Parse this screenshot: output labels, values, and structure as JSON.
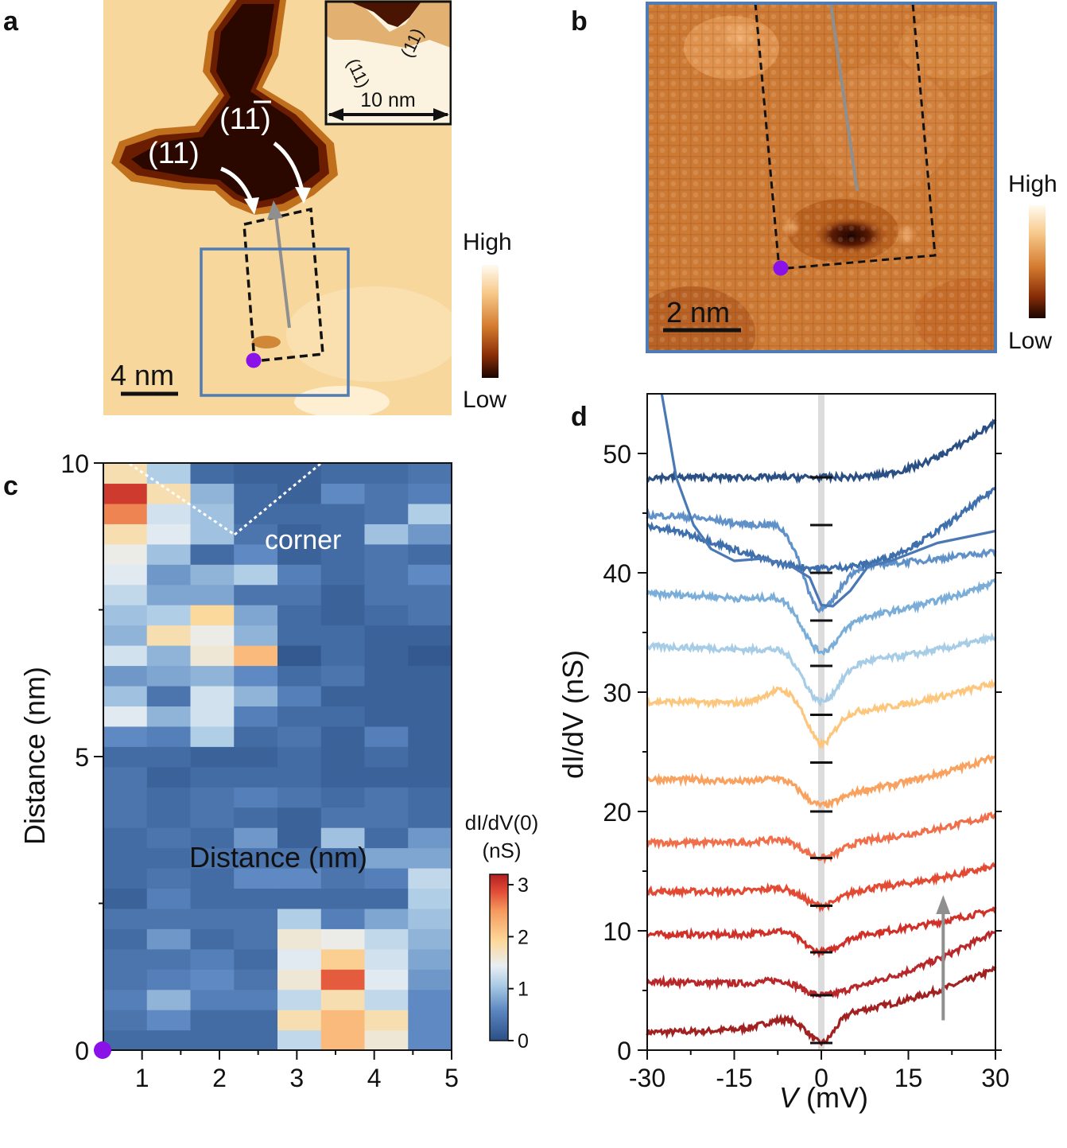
{
  "panels": {
    "a": {
      "label": "a",
      "scale_bar": "4 nm",
      "inset_scale_bar": "10 nm",
      "facet_1": "(11)",
      "facet_2": "(11)",
      "facet_2_over": "1",
      "inset_facet_1": "(11)",
      "inset_facet_2": "(11)",
      "colorbar_high": "High",
      "colorbar_low": "Low"
    },
    "b": {
      "label": "b",
      "scale_bar": "2 nm",
      "colorbar_high": "High",
      "colorbar_low": "Low"
    },
    "c": {
      "label": "c",
      "annotation": "corner",
      "colorbar_title_1": "dI/dV(0)",
      "colorbar_title_2": "(nS)"
    },
    "d": {
      "label": "d"
    }
  },
  "colors": {
    "accent_blue": "#4f7cb5",
    "marker_purple": "#8a11e8",
    "arrow_gray": "#8f8f8f"
  },
  "chart_data": [
    {
      "type": "heatmap",
      "panel": "c",
      "xlabel": "Distance (nm)",
      "ylabel": "Distance (nm)",
      "xlim": [
        0.5,
        5
      ],
      "ylim": [
        0,
        10
      ],
      "x_ticks": [
        "1",
        "2",
        "3",
        "4",
        "5"
      ],
      "y_ticks": [
        "0",
        "5",
        "10"
      ],
      "colorbar_ticks": [
        "0",
        "1",
        "2",
        "3"
      ],
      "colorbar_range": [
        0,
        3.2
      ],
      "columns": 8,
      "rows": 29,
      "values_bottom_to_top": [
        [
          0.3,
          0.3,
          0.3,
          0.3,
          1.2,
          2.2,
          1.6,
          0.6
        ],
        [
          0.4,
          0.6,
          0.3,
          0.3,
          1.8,
          2.2,
          1.8,
          0.6
        ],
        [
          0.5,
          0.9,
          0.5,
          0.5,
          1.2,
          1.8,
          1.2,
          0.6
        ],
        [
          0.4,
          0.5,
          0.6,
          0.4,
          1.6,
          2.8,
          1.4,
          0.7
        ],
        [
          0.4,
          0.4,
          0.5,
          0.3,
          1.4,
          2.0,
          1.3,
          0.8
        ],
        [
          0.3,
          0.7,
          0.3,
          0.4,
          1.6,
          1.5,
          1.2,
          0.9
        ],
        [
          0.4,
          0.4,
          0.4,
          0.4,
          1.1,
          0.5,
          0.8,
          1.0
        ],
        [
          0.2,
          0.5,
          0.3,
          0.3,
          0.3,
          0.3,
          0.3,
          1.1
        ],
        [
          0.3,
          0.4,
          0.3,
          0.6,
          0.6,
          0.4,
          0.5,
          1.2
        ],
        [
          0.3,
          0.3,
          0.4,
          0.4,
          0.4,
          0.3,
          0.8,
          0.8
        ],
        [
          0.3,
          0.4,
          0.3,
          0.7,
          0.2,
          1.0,
          0.3,
          0.7
        ],
        [
          0.4,
          0.3,
          0.4,
          0.3,
          0.2,
          0.4,
          0.4,
          0.3
        ],
        [
          0.4,
          0.3,
          0.4,
          0.5,
          0.4,
          0.3,
          0.4,
          0.3
        ],
        [
          0.4,
          0.2,
          0.3,
          0.3,
          0.3,
          0.2,
          0.2,
          0.2
        ],
        [
          0.3,
          0.3,
          0.2,
          0.2,
          0.3,
          0.2,
          0.3,
          0.2
        ],
        [
          0.6,
          0.5,
          1.1,
          0.3,
          0.4,
          0.2,
          0.5,
          0.2
        ],
        [
          1.4,
          0.9,
          1.3,
          0.5,
          0.3,
          0.3,
          0.2,
          0.2
        ],
        [
          1.0,
          0.4,
          1.3,
          0.9,
          0.5,
          0.2,
          0.2,
          0.2
        ],
        [
          0.7,
          0.8,
          0.9,
          0.6,
          0.3,
          0.4,
          0.2,
          0.2
        ],
        [
          1.3,
          0.9,
          1.6,
          2.2,
          0.1,
          0.3,
          0.2,
          0.1
        ],
        [
          0.9,
          1.8,
          1.5,
          0.9,
          0.3,
          0.3,
          0.2,
          0.2
        ],
        [
          1.0,
          1.1,
          1.9,
          0.8,
          0.3,
          0.2,
          0.3,
          0.4
        ],
        [
          1.2,
          0.8,
          0.8,
          0.4,
          0.4,
          0.2,
          0.4,
          0.4
        ],
        [
          1.4,
          0.7,
          0.9,
          1.1,
          0.5,
          0.3,
          0.4,
          0.6
        ],
        [
          1.5,
          1.0,
          0.3,
          0.6,
          0.2,
          0.3,
          0.4,
          0.3
        ],
        [
          1.8,
          1.4,
          1.0,
          0.4,
          0.2,
          0.3,
          1.0,
          0.7
        ],
        [
          2.6,
          1.3,
          1.0,
          0.3,
          0.3,
          0.3,
          0.4,
          1.1
        ],
        [
          3.0,
          1.8,
          0.9,
          0.3,
          0.2,
          0.6,
          0.4,
          0.5
        ],
        [
          1.8,
          1.1,
          0.3,
          0.2,
          0.2,
          0.3,
          0.3,
          0.4
        ]
      ]
    },
    {
      "type": "line",
      "panel": "d",
      "xlabel_italic": "V",
      "xlabel_unit": " (mV)",
      "ylabel": "dI/dV (nS)",
      "xlim": [
        -30,
        30
      ],
      "ylim": [
        0,
        55
      ],
      "x_ticks": [
        "-30",
        "-15",
        "0",
        "15",
        "30"
      ],
      "y_ticks": [
        "0",
        "10",
        "20",
        "30",
        "40",
        "50"
      ],
      "series": [
        {
          "name": "spectrum 1",
          "color": "#a12020",
          "left": 1.5,
          "zero": 0.6,
          "dip_width": 3,
          "right": 6.8,
          "right_start": 0,
          "mid_start": 3,
          "mid_bump": 0.5
        },
        {
          "name": "spectrum 2",
          "color": "#b8282a",
          "left": 5.7,
          "zero": 4.6,
          "dip_width": 4,
          "right": 10.0,
          "right_start": 0,
          "mid_start": 5,
          "mid_bump": 0.4
        },
        {
          "name": "spectrum 3",
          "color": "#cf3129",
          "left": 9.7,
          "zero": 8.2,
          "dip_width": 4,
          "right": 11.8,
          "right_start": 0,
          "mid_start": 9.5,
          "mid_bump": 0.4
        },
        {
          "name": "spectrum 4",
          "color": "#e24a33",
          "left": 13.3,
          "zero": 12.1,
          "dip_width": 4,
          "right": 15.4,
          "right_start": 0,
          "mid_start": 13.3,
          "mid_bump": 0.3
        },
        {
          "name": "spectrum 5",
          "color": "#f06f4a",
          "left": 17.4,
          "zero": 16.1,
          "dip_width": 4,
          "right": 19.7,
          "right_start": 0,
          "mid_start": 17.3,
          "mid_bump": 0.3
        },
        {
          "name": "spectrum 6",
          "color": "#f9a15e",
          "left": 22.7,
          "zero": 20.5,
          "dip_width": 4,
          "right": 24.6,
          "right_start": 0,
          "mid_start": 21.5,
          "mid_bump": 0.5
        },
        {
          "name": "spectrum 7",
          "color": "#fcc67c",
          "left": 29.2,
          "zero": 25.6,
          "dip_width": 3,
          "right": 30.8,
          "right_start": 0,
          "mid_start": 28.2,
          "mid_bump": 1.3
        },
        {
          "name": "spectrum 8",
          "color": "#a6cce6",
          "left": 33.8,
          "zero": 29.2,
          "dip_width": 4,
          "right": 34.6,
          "right_start": 0,
          "mid_start": 32.4,
          "mid_bump": 0.3
        },
        {
          "name": "spectrum 9",
          "color": "#7aaed8",
          "left": 38.2,
          "zero": 33.4,
          "dip_width": 4,
          "right": 39.2,
          "right_start": 0,
          "mid_start": 36.0,
          "mid_bump": 0.5
        },
        {
          "name": "spectrum 10",
          "color": "#5f90c8",
          "left": 44.8,
          "zero": 36.9,
          "dip_width": 4,
          "right": 41.8,
          "right_start": 0,
          "mid_start": 40.5,
          "mid_bump": 0.7
        },
        {
          "name": "spectrum 11",
          "color": "#3f6fac",
          "left": 44.3,
          "zero": 40.4,
          "dip_width": 20,
          "right": 47.9,
          "right_start": 0,
          "mid_start": 42.5,
          "mid_bump": 0
        },
        {
          "name": "spectrum 12",
          "color": "#2a4f84",
          "left": 48.0,
          "zero": 48.0,
          "dip_width": 20,
          "right": 53.2,
          "right_start": 0,
          "mid_start": 48.0,
          "mid_bump": 0
        }
      ],
      "extra_curve": {
        "name": "steep curve",
        "color": "#4a78b5",
        "points": [
          [
            -27.5,
            55
          ],
          [
            -25,
            48
          ],
          [
            -22,
            44
          ],
          [
            -19,
            42
          ],
          [
            -15,
            41
          ],
          [
            -10,
            41.2
          ],
          [
            -5,
            40.5
          ],
          [
            -2,
            39.6
          ],
          [
            0,
            37.3
          ],
          [
            2,
            37.2
          ],
          [
            5,
            38.5
          ],
          [
            8,
            40.5
          ],
          [
            12,
            41.0
          ],
          [
            20,
            42.5
          ],
          [
            30,
            43.5
          ]
        ]
      },
      "zero_bias_markers_y": [
        0.6,
        4.6,
        8.2,
        12.1,
        16.1,
        20.0,
        24.1,
        28.1,
        32.2,
        36.0,
        40.0,
        44.0,
        48.0
      ],
      "vertical_line_x": 0,
      "arrow": {
        "x": 21,
        "y_from": 2.5,
        "y_to": 13
      }
    }
  ]
}
